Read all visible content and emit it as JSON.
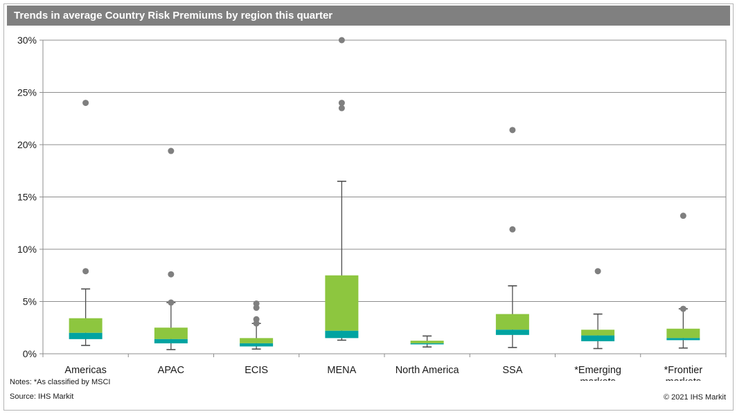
{
  "chart_data": {
    "type": "boxplot",
    "title": "Trends in average Country Risk Premiums by region this quarter",
    "y_unit": "%",
    "ylim": [
      0,
      30
    ],
    "y_tick_values": [
      0,
      5,
      10,
      15,
      20,
      25,
      30
    ],
    "y_tick_labels": [
      "0%",
      "5%",
      "10%",
      "15%",
      "20%",
      "25%",
      "30%"
    ],
    "grid": true,
    "legend": "none",
    "categories": [
      {
        "label": "Americas",
        "lines": [
          "Americas"
        ]
      },
      {
        "label": "APAC",
        "lines": [
          "APAC"
        ]
      },
      {
        "label": "ECIS",
        "lines": [
          "ECIS"
        ]
      },
      {
        "label": "MENA",
        "lines": [
          "MENA"
        ]
      },
      {
        "label": "North America",
        "lines": [
          "North America"
        ]
      },
      {
        "label": "SSA",
        "lines": [
          "SSA"
        ]
      },
      {
        "label": "*Emerging markets",
        "lines": [
          "*Emerging",
          "markets"
        ]
      },
      {
        "label": "*Frontier markets",
        "lines": [
          "*Frontier",
          "markets"
        ]
      }
    ],
    "series": [
      {
        "label": "Americas",
        "whisker_low": 0.8,
        "q1": 1.4,
        "median": 2.0,
        "q3": 3.4,
        "whisker_high": 6.2,
        "outliers": [
          24.0,
          7.9
        ]
      },
      {
        "label": "APAC",
        "whisker_low": 0.4,
        "q1": 1.0,
        "median": 1.4,
        "q3": 2.5,
        "whisker_high": 4.9,
        "outliers": [
          19.4,
          7.6,
          4.9
        ]
      },
      {
        "label": "ECIS",
        "whisker_low": 0.45,
        "q1": 0.7,
        "median": 1.0,
        "q3": 1.5,
        "whisker_high": 2.9,
        "outliers": [
          4.8,
          4.4,
          3.3,
          2.9
        ]
      },
      {
        "label": "MENA",
        "whisker_low": 1.3,
        "q1": 1.5,
        "median": 2.2,
        "q3": 7.5,
        "whisker_high": 16.5,
        "outliers": [
          30.0,
          24.0,
          23.5
        ]
      },
      {
        "label": "North America",
        "whisker_low": 0.65,
        "q1": 0.9,
        "median": 1.0,
        "q3": 1.25,
        "whisker_high": 1.7,
        "outliers": []
      },
      {
        "label": "SSA",
        "whisker_low": 0.6,
        "q1": 1.8,
        "median": 2.3,
        "q3": 3.8,
        "whisker_high": 6.5,
        "outliers": [
          21.4,
          11.9
        ]
      },
      {
        "label": "*Emerging markets",
        "whisker_low": 0.5,
        "q1": 1.2,
        "median": 1.75,
        "q3": 2.3,
        "whisker_high": 3.8,
        "outliers": [
          7.9
        ]
      },
      {
        "label": "*Frontier markets",
        "whisker_low": 0.55,
        "q1": 1.3,
        "median": 1.5,
        "q3": 2.4,
        "whisker_high": 4.3,
        "outliers": [
          13.2,
          4.3
        ]
      }
    ]
  },
  "colors": {
    "header_bg": "#808080",
    "title_text": "#ffffff",
    "box_upper_green": "#8DC63F",
    "box_lower_teal": "#00A3A1",
    "outlier_gray": "#7f7f7f",
    "whisker": "#4d4d4d",
    "grid": "#8c8c8c",
    "text": "#1a1a1a"
  },
  "footer": {
    "note_line1": "Notes: *As classified by MSCI",
    "note_line2": "Source: IHS Markit",
    "copyright": "© 2021 IHS Markit"
  }
}
